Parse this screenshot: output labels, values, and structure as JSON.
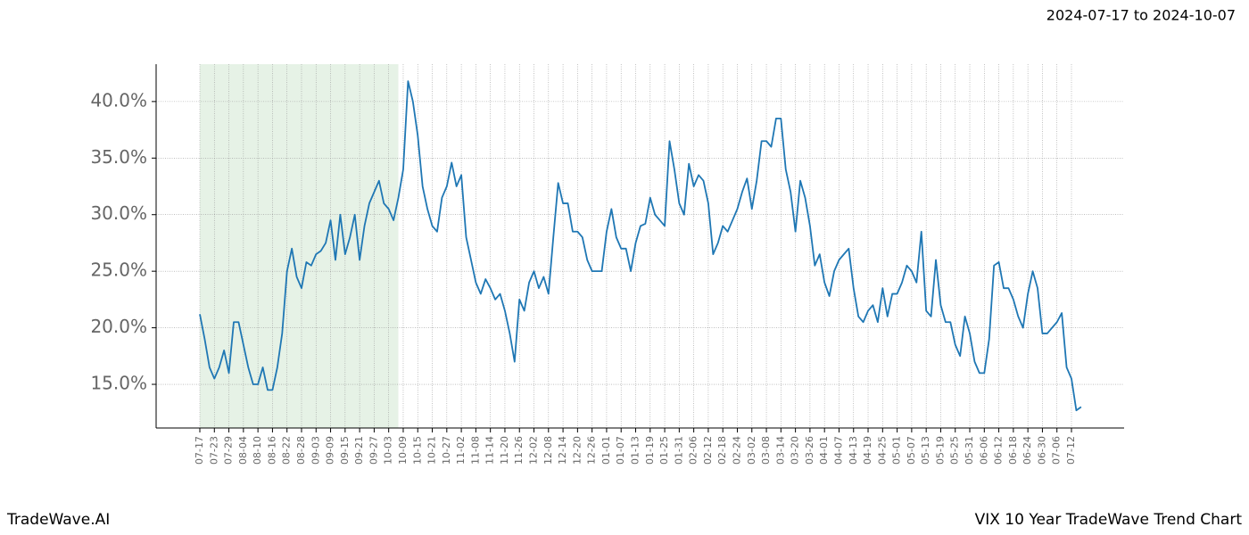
{
  "chart_data": {
    "type": "line",
    "title": "VIX 10 Year TradeWave Trend Chart",
    "subtitle": "2024-07-17 to 2024-10-07",
    "brand": "TradeWave.AI",
    "color": "#1f77b4",
    "highlight": [
      0,
      41
    ],
    "highlight_color": "#d6ead6",
    "grid": true,
    "ylim": [
      11.14,
      43.3
    ],
    "yticks": [
      {
        "value": 15,
        "label": "15.0%"
      },
      {
        "value": 20,
        "label": "20.0%"
      },
      {
        "value": 25,
        "label": "25.0%"
      },
      {
        "value": 30,
        "label": "30.0%"
      },
      {
        "value": 35,
        "label": "35.0%"
      },
      {
        "value": 40,
        "label": "40.0%"
      }
    ],
    "categories": [
      "07-17",
      null,
      null,
      "07-23",
      null,
      null,
      "07-29",
      null,
      null,
      "08-04",
      null,
      null,
      "08-10",
      null,
      null,
      "08-16",
      null,
      null,
      "08-22",
      null,
      null,
      "08-28",
      null,
      null,
      "09-03",
      null,
      null,
      "09-09",
      null,
      null,
      "09-15",
      null,
      null,
      "09-21",
      null,
      null,
      "09-27",
      null,
      null,
      "10-03",
      null,
      null,
      "10-09",
      null,
      null,
      "10-15",
      null,
      null,
      "10-21",
      null,
      null,
      "10-27",
      null,
      null,
      "11-02",
      null,
      null,
      "11-08",
      null,
      null,
      "11-14",
      null,
      null,
      "11-20",
      null,
      null,
      "11-26",
      null,
      null,
      "12-02",
      null,
      null,
      "12-08",
      null,
      null,
      "12-14",
      null,
      null,
      "12-20",
      null,
      null,
      "12-26",
      null,
      null,
      "01-01",
      null,
      null,
      "01-07",
      null,
      null,
      "01-13",
      null,
      null,
      "01-19",
      null,
      null,
      "01-25",
      null,
      null,
      "01-31",
      null,
      null,
      "02-06",
      null,
      null,
      "02-12",
      null,
      null,
      "02-18",
      null,
      null,
      "02-24",
      null,
      null,
      "03-02",
      null,
      null,
      "03-08",
      null,
      null,
      "03-14",
      null,
      null,
      "03-20",
      null,
      null,
      "03-26",
      null,
      null,
      "04-01",
      null,
      null,
      "04-07",
      null,
      null,
      "04-13",
      null,
      null,
      "04-19",
      null,
      null,
      "04-25",
      null,
      null,
      "05-01",
      null,
      null,
      "05-07",
      null,
      null,
      "05-13",
      null,
      null,
      "05-19",
      null,
      null,
      "05-25",
      null,
      null,
      "05-31",
      null,
      null,
      "06-06",
      null,
      null,
      "06-12",
      null,
      null,
      "06-18",
      null,
      null,
      "06-24",
      null,
      null,
      "06-30",
      null,
      null,
      "07-06",
      null,
      null,
      "07-12",
      null,
      null
    ],
    "values": [
      21.2,
      19.0,
      16.5,
      15.5,
      16.5,
      18.0,
      16.0,
      20.5,
      20.5,
      18.5,
      16.5,
      15.0,
      15.0,
      16.5,
      14.5,
      14.5,
      16.5,
      19.5,
      25.0,
      27.0,
      24.5,
      23.5,
      25.8,
      25.5,
      26.5,
      26.8,
      27.5,
      29.5,
      26.0,
      30.0,
      26.5,
      28.0,
      30.0,
      26.0,
      29.0,
      31.0,
      32.0,
      33.0,
      31.0,
      30.5,
      29.5,
      31.5,
      34.0,
      41.8,
      40.0,
      37.0,
      32.5,
      30.5,
      29.0,
      28.5,
      31.5,
      32.5,
      34.6,
      32.5,
      33.5,
      28.0,
      26.0,
      24.0,
      23.0,
      24.3,
      23.5,
      22.5,
      23.0,
      21.5,
      19.5,
      17.0,
      22.5,
      21.5,
      24.0,
      25.0,
      23.5,
      24.5,
      23.0,
      28.0,
      32.8,
      31.0,
      31.0,
      28.5,
      28.5,
      28.0,
      26.0,
      25.0,
      25.0,
      25.0,
      28.5,
      30.5,
      28.0,
      27.0,
      27.0,
      25.0,
      27.5,
      29.0,
      29.2,
      31.5,
      30.0,
      29.5,
      29.0,
      36.5,
      34.0,
      31.0,
      30.0,
      34.5,
      32.5,
      33.5,
      33.0,
      31.0,
      26.5,
      27.5,
      29.0,
      28.5,
      29.5,
      30.5,
      32.0,
      33.2,
      30.5,
      33.0,
      36.5,
      36.5,
      36.0,
      38.5,
      38.5,
      34.0,
      32.0,
      28.5,
      33.0,
      31.5,
      29.0,
      25.5,
      26.5,
      24.0,
      22.8,
      25.0,
      26.0,
      26.5,
      27.0,
      23.5,
      21.0,
      20.5,
      21.5,
      22.0,
      20.5,
      23.5,
      21.0,
      23.0,
      23.0,
      24.0,
      25.5,
      25.0,
      24.0,
      28.5,
      21.5,
      21.0,
      26.0,
      22.0,
      20.5,
      20.5,
      18.5,
      17.5,
      21.0,
      19.5,
      17.0,
      16.0,
      16.0,
      19.0,
      25.5,
      25.8,
      23.5,
      23.5,
      22.5,
      21.0,
      20.0,
      23.0,
      25.0,
      23.5,
      19.5,
      19.5,
      20.0,
      20.5,
      21.3,
      16.5,
      15.5,
      12.7,
      13.0
    ]
  }
}
